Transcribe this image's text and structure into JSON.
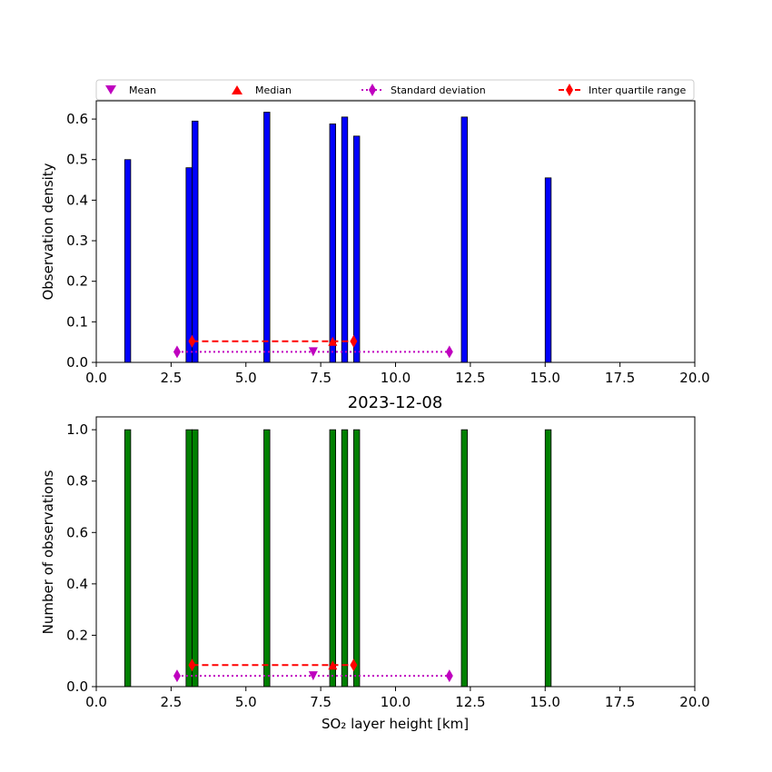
{
  "legend": {
    "items": [
      {
        "label": "Mean",
        "marker": "triangle-down",
        "color": "#bf00bf"
      },
      {
        "label": "Median",
        "marker": "triangle-up",
        "color": "#ff0000"
      },
      {
        "label": "Standard deviation",
        "marker": "diamond",
        "color": "#bf00bf",
        "line": "dotted"
      },
      {
        "label": "Inter quartile range",
        "marker": "diamond",
        "color": "#ff0000",
        "line": "dashed"
      }
    ]
  },
  "chart_data": [
    {
      "type": "bar",
      "ylabel": "Observation density",
      "xlabel": "",
      "title": "",
      "xlim": [
        0,
        20
      ],
      "ylim": [
        0,
        0.645
      ],
      "xticks": [
        "0.0",
        "2.5",
        "5.0",
        "7.5",
        "10.0",
        "12.5",
        "15.0",
        "17.5",
        "20.0"
      ],
      "yticks": [
        "0.0",
        "0.1",
        "0.2",
        "0.3",
        "0.4",
        "0.5",
        "0.6"
      ],
      "ytick_values": [
        0,
        0.1,
        0.2,
        0.3,
        0.4,
        0.5,
        0.6
      ],
      "bar_color": "#0000ff",
      "bin_width": 0.2,
      "bars": [
        {
          "x": 1.05,
          "value": 0.5
        },
        {
          "x": 3.1,
          "value": 0.48
        },
        {
          "x": 3.3,
          "value": 0.595
        },
        {
          "x": 5.7,
          "value": 0.617
        },
        {
          "x": 7.9,
          "value": 0.588
        },
        {
          "x": 8.3,
          "value": 0.605
        },
        {
          "x": 8.7,
          "value": 0.558
        },
        {
          "x": 12.3,
          "value": 0.605
        },
        {
          "x": 15.1,
          "value": 0.455
        }
      ],
      "mean": {
        "x": 7.25,
        "y": 0.026
      },
      "median": {
        "x": 7.9,
        "y": 0.052
      },
      "std_range": {
        "x": [
          2.7,
          11.8
        ],
        "y": 0.026
      },
      "iqr": {
        "x": [
          3.2,
          8.6
        ],
        "y": 0.052
      }
    },
    {
      "type": "bar",
      "title": "2023-12-08",
      "ylabel": "Number of observations",
      "xlabel": "SO₂ layer height [km]",
      "xlim": [
        0,
        20
      ],
      "ylim": [
        0,
        1.05
      ],
      "xticks": [
        "0.0",
        "2.5",
        "5.0",
        "7.5",
        "10.0",
        "12.5",
        "15.0",
        "17.5",
        "20.0"
      ],
      "yticks": [
        "0.0",
        "0.2",
        "0.4",
        "0.6",
        "0.8",
        "1.0"
      ],
      "ytick_values": [
        0,
        0.2,
        0.4,
        0.6,
        0.8,
        1.0
      ],
      "bar_color": "#008000",
      "bin_width": 0.2,
      "bars": [
        {
          "x": 1.05,
          "value": 1
        },
        {
          "x": 3.1,
          "value": 1
        },
        {
          "x": 3.3,
          "value": 1
        },
        {
          "x": 5.7,
          "value": 1
        },
        {
          "x": 7.9,
          "value": 1
        },
        {
          "x": 8.3,
          "value": 1
        },
        {
          "x": 8.7,
          "value": 1
        },
        {
          "x": 12.3,
          "value": 1
        },
        {
          "x": 15.1,
          "value": 1
        }
      ],
      "mean": {
        "x": 7.25,
        "y": 0.042
      },
      "median": {
        "x": 7.9,
        "y": 0.084
      },
      "std_range": {
        "x": [
          2.7,
          11.8
        ],
        "y": 0.042
      },
      "iqr": {
        "x": [
          3.2,
          8.6
        ],
        "y": 0.084
      }
    }
  ]
}
